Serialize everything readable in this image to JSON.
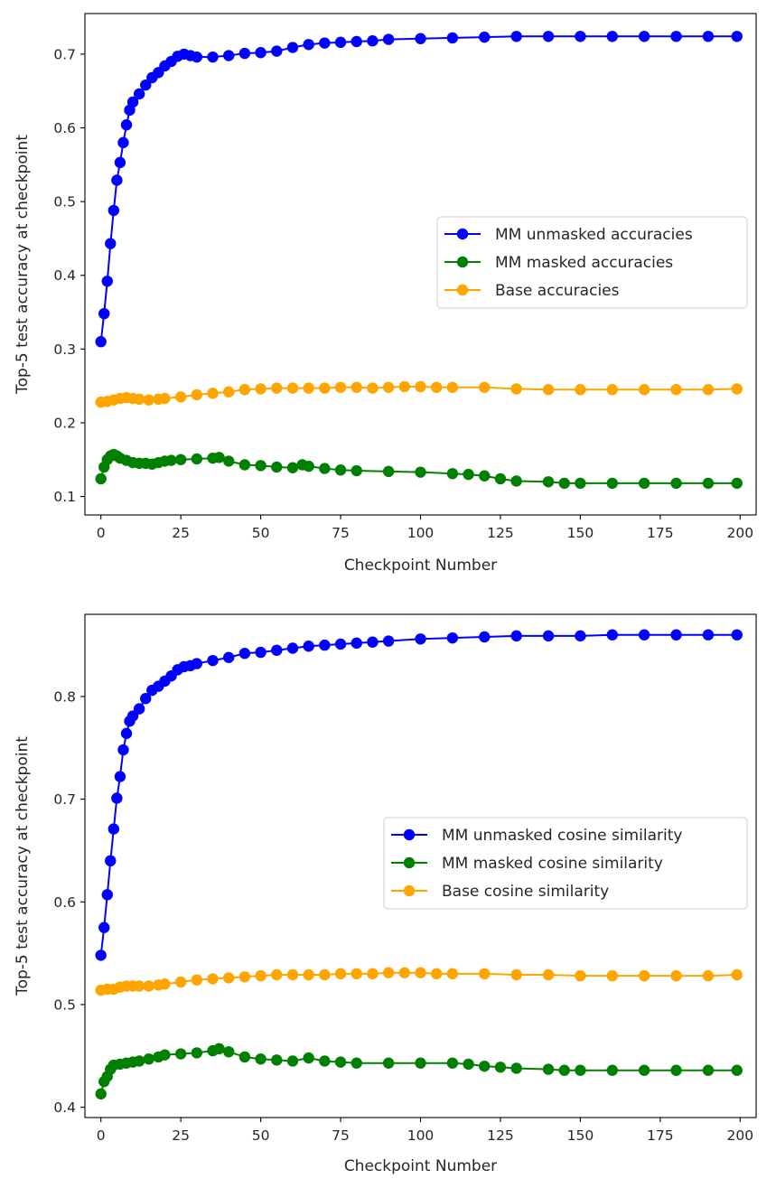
{
  "chart_data": [
    {
      "type": "line",
      "xlabel": "Checkpoint Number",
      "ylabel": "Top-5 test accuracy at checkpoint",
      "xlim": [
        -5,
        205
      ],
      "ylim": [
        0.075,
        0.755
      ],
      "xticks": [
        0,
        25,
        50,
        75,
        100,
        125,
        150,
        175,
        200
      ],
      "yticks": [
        0.1,
        0.2,
        0.3,
        0.4,
        0.5,
        0.6,
        0.7
      ],
      "ytick_labels": [
        "0.1",
        "0.2",
        "0.3",
        "0.4",
        "0.5",
        "0.6",
        "0.7"
      ],
      "grid": false,
      "legend_position": "center-right",
      "series": [
        {
          "name": "MM unmasked accuracies",
          "color": "#0000ff",
          "marker": "circle",
          "x": [
            0,
            1,
            2,
            3,
            4,
            5,
            6,
            7,
            8,
            9,
            10,
            12,
            14,
            16,
            18,
            20,
            22,
            24,
            26,
            28,
            30,
            35,
            40,
            45,
            50,
            55,
            60,
            65,
            70,
            75,
            80,
            85,
            90,
            100,
            110,
            120,
            130,
            140,
            150,
            160,
            170,
            180,
            190,
            199
          ],
          "y": [
            0.31,
            0.348,
            0.392,
            0.443,
            0.488,
            0.529,
            0.553,
            0.58,
            0.604,
            0.624,
            0.635,
            0.646,
            0.658,
            0.668,
            0.675,
            0.684,
            0.69,
            0.697,
            0.7,
            0.698,
            0.696,
            0.696,
            0.698,
            0.701,
            0.702,
            0.704,
            0.709,
            0.713,
            0.715,
            0.716,
            0.717,
            0.718,
            0.72,
            0.721,
            0.722,
            0.723,
            0.724,
            0.724,
            0.724,
            0.724,
            0.724,
            0.724,
            0.724,
            0.724
          ]
        },
        {
          "name": "MM masked accuracies",
          "color": "#008000",
          "marker": "circle",
          "x": [
            0,
            1,
            2,
            3,
            4,
            5,
            6,
            8,
            10,
            12,
            14,
            16,
            18,
            20,
            22,
            25,
            30,
            35,
            37,
            40,
            45,
            50,
            55,
            60,
            63,
            65,
            70,
            75,
            80,
            90,
            100,
            110,
            115,
            120,
            125,
            130,
            140,
            145,
            150,
            160,
            170,
            180,
            190,
            199
          ],
          "y": [
            0.124,
            0.14,
            0.15,
            0.155,
            0.157,
            0.155,
            0.152,
            0.149,
            0.146,
            0.145,
            0.145,
            0.144,
            0.146,
            0.148,
            0.149,
            0.15,
            0.151,
            0.152,
            0.153,
            0.148,
            0.143,
            0.142,
            0.14,
            0.139,
            0.143,
            0.141,
            0.138,
            0.136,
            0.135,
            0.134,
            0.133,
            0.131,
            0.13,
            0.128,
            0.124,
            0.121,
            0.12,
            0.118,
            0.118,
            0.118,
            0.118,
            0.118,
            0.118,
            0.118
          ]
        },
        {
          "name": "Base accuracies",
          "color": "#ffa500",
          "marker": "circle",
          "x": [
            0,
            2,
            4,
            6,
            8,
            10,
            12,
            15,
            18,
            20,
            25,
            30,
            35,
            40,
            45,
            50,
            55,
            60,
            65,
            70,
            75,
            80,
            85,
            90,
            95,
            100,
            105,
            110,
            120,
            130,
            140,
            150,
            160,
            170,
            180,
            190,
            199
          ],
          "y": [
            0.228,
            0.229,
            0.231,
            0.233,
            0.234,
            0.233,
            0.232,
            0.231,
            0.232,
            0.233,
            0.235,
            0.238,
            0.24,
            0.242,
            0.245,
            0.246,
            0.247,
            0.247,
            0.247,
            0.247,
            0.248,
            0.248,
            0.247,
            0.248,
            0.249,
            0.249,
            0.248,
            0.248,
            0.248,
            0.246,
            0.245,
            0.245,
            0.245,
            0.245,
            0.245,
            0.245,
            0.246
          ]
        }
      ]
    },
    {
      "type": "line",
      "xlabel": "Checkpoint Number",
      "ylabel": "Top-5 test accuracy at checkpoint",
      "xlim": [
        -5,
        205
      ],
      "ylim": [
        0.39,
        0.88
      ],
      "xticks": [
        0,
        25,
        50,
        75,
        100,
        125,
        150,
        175,
        200
      ],
      "yticks": [
        0.4,
        0.5,
        0.6,
        0.7,
        0.8
      ],
      "ytick_labels": [
        "0.4",
        "0.5",
        "0.6",
        "0.7",
        "0.8"
      ],
      "grid": false,
      "legend_position": "center-right",
      "series": [
        {
          "name": "MM unmasked cosine similarity",
          "color": "#0000ff",
          "marker": "circle",
          "x": [
            0,
            1,
            2,
            3,
            4,
            5,
            6,
            7,
            8,
            9,
            10,
            12,
            14,
            16,
            18,
            20,
            22,
            24,
            26,
            28,
            30,
            35,
            40,
            45,
            50,
            55,
            60,
            65,
            70,
            75,
            80,
            85,
            90,
            100,
            110,
            120,
            130,
            140,
            150,
            160,
            170,
            180,
            190,
            199
          ],
          "y": [
            0.548,
            0.575,
            0.607,
            0.64,
            0.671,
            0.701,
            0.722,
            0.748,
            0.764,
            0.776,
            0.781,
            0.788,
            0.798,
            0.806,
            0.81,
            0.815,
            0.82,
            0.826,
            0.829,
            0.83,
            0.832,
            0.835,
            0.838,
            0.842,
            0.843,
            0.845,
            0.847,
            0.849,
            0.85,
            0.851,
            0.852,
            0.853,
            0.854,
            0.856,
            0.857,
            0.858,
            0.859,
            0.859,
            0.859,
            0.86,
            0.86,
            0.86,
            0.86,
            0.86
          ]
        },
        {
          "name": "MM masked cosine similarity",
          "color": "#008000",
          "marker": "circle",
          "x": [
            0,
            1,
            2,
            3,
            4,
            6,
            8,
            10,
            12,
            15,
            18,
            20,
            25,
            30,
            35,
            37,
            40,
            45,
            50,
            55,
            60,
            65,
            70,
            75,
            80,
            90,
            100,
            110,
            115,
            120,
            125,
            130,
            140,
            145,
            150,
            160,
            170,
            180,
            190,
            199
          ],
          "y": [
            0.413,
            0.425,
            0.43,
            0.437,
            0.441,
            0.442,
            0.443,
            0.444,
            0.445,
            0.447,
            0.449,
            0.451,
            0.452,
            0.453,
            0.455,
            0.457,
            0.454,
            0.449,
            0.447,
            0.446,
            0.445,
            0.448,
            0.445,
            0.444,
            0.443,
            0.443,
            0.443,
            0.443,
            0.442,
            0.44,
            0.439,
            0.438,
            0.437,
            0.436,
            0.436,
            0.436,
            0.436,
            0.436,
            0.436,
            0.436
          ]
        },
        {
          "name": "Base cosine similarity",
          "color": "#ffa500",
          "marker": "circle",
          "x": [
            0,
            2,
            4,
            6,
            8,
            10,
            12,
            15,
            18,
            20,
            25,
            30,
            35,
            40,
            45,
            50,
            55,
            60,
            65,
            70,
            75,
            80,
            85,
            90,
            95,
            100,
            105,
            110,
            120,
            130,
            140,
            150,
            160,
            170,
            180,
            190,
            199
          ],
          "y": [
            0.514,
            0.515,
            0.515,
            0.517,
            0.518,
            0.518,
            0.518,
            0.518,
            0.519,
            0.52,
            0.522,
            0.524,
            0.525,
            0.526,
            0.527,
            0.528,
            0.529,
            0.529,
            0.529,
            0.529,
            0.53,
            0.53,
            0.53,
            0.531,
            0.531,
            0.531,
            0.53,
            0.53,
            0.53,
            0.529,
            0.529,
            0.528,
            0.528,
            0.528,
            0.528,
            0.528,
            0.529
          ]
        }
      ]
    }
  ]
}
